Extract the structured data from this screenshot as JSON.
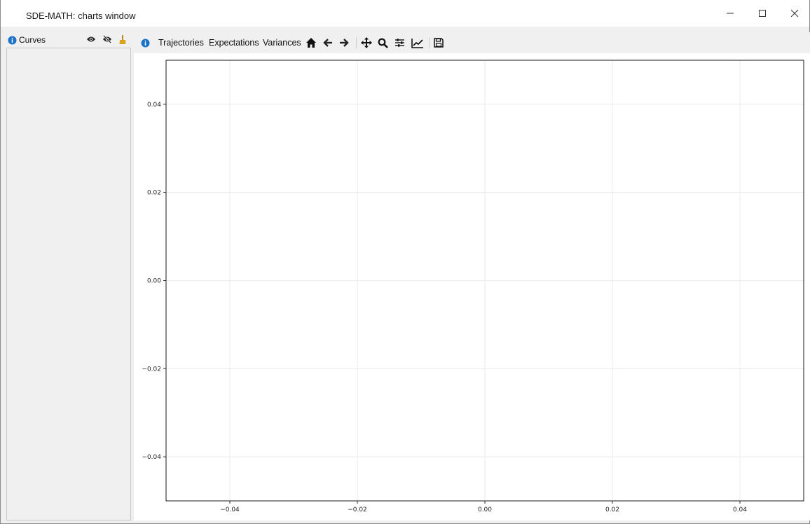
{
  "window": {
    "title": "SDE-MATH: charts window"
  },
  "left_panel": {
    "header_label": "Curves",
    "icons": [
      "info-icon",
      "eye-icon",
      "eye-slash-icon",
      "broom-icon"
    ]
  },
  "toolbar": {
    "info_icon": "info-icon",
    "trajectories_label": "Trajectories",
    "expectations_label": "Expectations",
    "variances_label": "Variances",
    "tools": [
      "home-icon",
      "back-arrow-icon",
      "forward-arrow-icon",
      "pan-icon",
      "zoom-icon",
      "subplots-config-icon",
      "axes-edit-icon",
      "save-icon"
    ]
  },
  "colors": {
    "info_blue": "#1a73c7",
    "broom_gold": "#d9a420",
    "grid": "#e6e6e6"
  },
  "chart_data": {
    "type": "line",
    "series": [],
    "xlim": [
      -0.05,
      0.05
    ],
    "ylim": [
      -0.05,
      0.05
    ],
    "x_ticks": [
      -0.04,
      -0.02,
      0.0,
      0.02,
      0.04
    ],
    "y_ticks": [
      -0.04,
      -0.02,
      0.0,
      0.02,
      0.04
    ],
    "x_tick_labels": [
      "−0.04",
      "−0.02",
      "0.00",
      "0.02",
      "0.04"
    ],
    "y_tick_labels": [
      "−0.04",
      "−0.02",
      "0.00",
      "0.02",
      "0.04"
    ],
    "grid": true,
    "title": "",
    "xlabel": "",
    "ylabel": ""
  }
}
